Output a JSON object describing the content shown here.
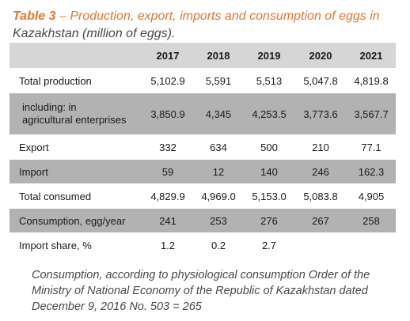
{
  "title": {
    "label": "Table 3",
    "dash": " – ",
    "text": "Production, export, imports and consumption of eggs in",
    "line2": "Kazakhstan (million of eggs)."
  },
  "table": {
    "years": [
      "2017",
      "2018",
      "2019",
      "2020",
      "2021"
    ],
    "rows": [
      {
        "label": "Total production",
        "values": [
          "5,102.9",
          "5,591",
          "5,513",
          "5,047.8",
          "4,819.8"
        ]
      },
      {
        "label_line1": "including: in",
        "label_line2": "agricultural enterprises",
        "values": [
          "3,850.9",
          "4,345",
          "4,253.5",
          "3,773.6",
          "3,567.7"
        ]
      },
      {
        "label": "Export",
        "values": [
          "332",
          "634",
          "500",
          "210",
          "77.1"
        ]
      },
      {
        "label": "Import",
        "values": [
          "59",
          "12",
          "140",
          "246",
          "162.3"
        ]
      },
      {
        "label": "Total consumed",
        "values": [
          "4,829.9",
          "4,969.0",
          "5,153.0",
          "5,083.8",
          "4,905"
        ]
      },
      {
        "label": "Consumption, egg/year",
        "values": [
          "241",
          "253",
          "276",
          "267",
          "258"
        ]
      },
      {
        "label": "Import share, %",
        "values": [
          "1.2",
          "0.2",
          "2.7",
          "",
          ""
        ]
      }
    ]
  },
  "note": "Consumption, according to physiological consumption Order of the Ministry of National Economy of the Republic of Kazakhstan dated December 9, 2016 No. 503 = 265",
  "colors": {
    "accent": "#e8762d",
    "header_bg": "#d6d6d6",
    "row_gray": "#b2b2b2",
    "text": "#1a1a1a"
  }
}
